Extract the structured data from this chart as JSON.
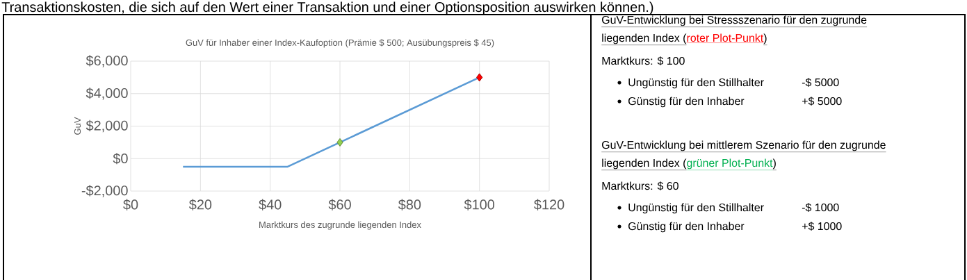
{
  "chart_data": [
    {
      "type": "line",
      "title": "GuV für Inhaber einer Index-Kaufoption (Prämie $ 500; Ausübungspreis $ 45)",
      "xlabel": "Marktkurs des zugrunde liegenden Index",
      "ylabel": "GuV",
      "annotations": [
        "Transaktionskosten, die sich auf den Wert einer Transaktion und einer Optionsposition auswirken können.)"
      ],
      "series": [
        {
          "type": "line",
          "color": "#5b9bd5",
          "marker": "none",
          "x": [
            15,
            45,
            60,
            100
          ],
          "values": [
            -500,
            -500,
            1000,
            5000
          ]
        },
        {
          "type": "scatter",
          "color": "#92d050",
          "marker": "diamond",
          "x": [
            60
          ],
          "values": [
            1000
          ]
        },
        {
          "type": "scatter",
          "color": "#ff0000",
          "marker": "diamond",
          "x": [
            100
          ],
          "values": [
            5000
          ]
        }
      ],
      "xlim": [
        0,
        120
      ],
      "ylim": [
        -2000,
        6000
      ],
      "xticks": [
        {
          "value": 0,
          "label": "$0"
        },
        {
          "value": 20,
          "label": "$20"
        },
        {
          "value": 40,
          "label": "$40"
        },
        {
          "value": 60,
          "label": "$60"
        },
        {
          "value": 80,
          "label": "$80"
        },
        {
          "value": 100,
          "label": "$100"
        },
        {
          "value": 120,
          "label": "$120"
        }
      ],
      "yticks": [
        {
          "value": -2000,
          "label": "-$2,000"
        },
        {
          "value": 0,
          "label": "$0"
        },
        {
          "value": 2000,
          "label": "$2,000"
        },
        {
          "value": 4000,
          "label": "$4,000"
        },
        {
          "value": 6000,
          "label": "$6,000"
        }
      ],
      "grid": true
    },
    {
      "type": "other",
      "annotations": [
        "GuV-Entwicklung bei Stressszenario für den zugrunde",
        "liegenden Index (",
        "roter Plot-Punkt",
        ")",
        "Marktkurs: $ 100",
        "Ungünstig für den Stillhalter",
        "-$ 5000",
        "Günstig für den Inhaber",
        "+$ 5000",
        "GuV-Entwicklung bei mittlerem Szenario für den zugrunde",
        "liegenden Index (",
        "grüner Plot-Punkt",
        ")",
        "Marktkurs: $ 60",
        "Ungünstig für den Stillhalter",
        "-$ 1000",
        "Günstig für den Inhaber",
        "+$ 1000"
      ]
    }
  ]
}
